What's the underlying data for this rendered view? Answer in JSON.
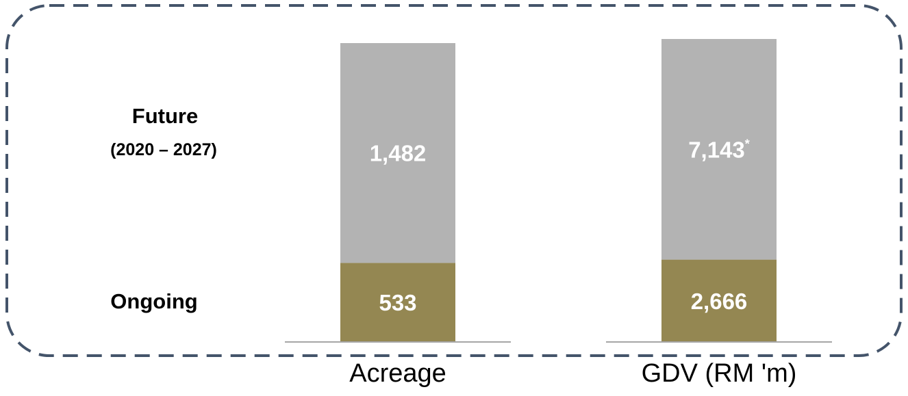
{
  "chart_data": {
    "type": "bar",
    "stacked": true,
    "normalized": true,
    "categories": [
      "Acreage",
      "GDV (RM 'm)"
    ],
    "series": [
      {
        "name": "Ongoing",
        "values": [
          533,
          2666
        ],
        "color": "#948752"
      },
      {
        "name": "Future (2020 – 2027)",
        "values": [
          1482,
          7143
        ],
        "color": "#b3b3b3"
      }
    ],
    "value_labels": [
      [
        "533",
        "2,666"
      ],
      [
        "1,482",
        "7,143"
      ]
    ],
    "value_label_markers": [
      [
        "",
        ""
      ],
      [
        "",
        "*"
      ]
    ],
    "row_labels": {
      "future_title": "Future",
      "future_period": "(2020 – 2027)",
      "ongoing": "Ongoing"
    },
    "colors": {
      "ongoing": "#948752",
      "future": "#b3b3b3",
      "border": "#44546a",
      "baseline": "#a6a6a6",
      "value_text": "#ffffff",
      "label_text": "#000000"
    },
    "grid": false,
    "legend": "none",
    "frame": "dashed rounded border"
  }
}
